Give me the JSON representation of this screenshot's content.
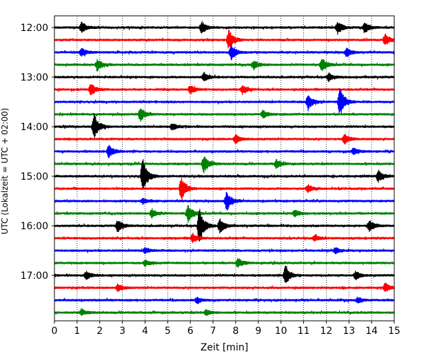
{
  "chart_data": {
    "type": "line",
    "title": "",
    "xlabel": "Zeit  [min]",
    "ylabel": "UTC (Lokalzeit = UTC + 02:00)",
    "xlim": [
      0,
      15
    ],
    "xticks": [
      0,
      1,
      2,
      3,
      4,
      5,
      6,
      7,
      8,
      9,
      10,
      11,
      12,
      13,
      14,
      15
    ],
    "ytick_labels": [
      "12:00",
      "13:00",
      "14:00",
      "15:00",
      "16:00",
      "17:00"
    ],
    "ytick_rows": [
      0,
      4,
      8,
      12,
      16,
      20
    ],
    "grid": "vertical dotted",
    "trace_interval_min": 15,
    "series": [
      {
        "start": "12:00",
        "color": "#000000",
        "events": [
          {
            "t": 1.2,
            "amp": 0.35
          },
          {
            "t": 6.5,
            "amp": 0.4
          },
          {
            "t": 12.5,
            "amp": 0.45
          },
          {
            "t": 13.7,
            "amp": 0.4
          }
        ]
      },
      {
        "start": "12:15",
        "color": "#ff0000",
        "events": [
          {
            "t": 7.7,
            "amp": 0.7
          },
          {
            "t": 14.6,
            "amp": 0.4
          }
        ]
      },
      {
        "start": "12:30",
        "color": "#0000ff",
        "events": [
          {
            "t": 1.2,
            "amp": 0.3
          },
          {
            "t": 7.8,
            "amp": 0.55
          },
          {
            "t": 12.9,
            "amp": 0.3
          }
        ]
      },
      {
        "start": "12:45",
        "color": "#008000",
        "events": [
          {
            "t": 1.9,
            "amp": 0.4
          },
          {
            "t": 8.8,
            "amp": 0.3
          },
          {
            "t": 11.8,
            "amp": 0.45
          }
        ]
      },
      {
        "start": "13:00",
        "color": "#000000",
        "events": [
          {
            "t": 6.6,
            "amp": 0.3
          },
          {
            "t": 12.1,
            "amp": 0.25
          }
        ]
      },
      {
        "start": "13:15",
        "color": "#ff0000",
        "events": [
          {
            "t": 1.6,
            "amp": 0.45
          },
          {
            "t": 6.0,
            "amp": 0.3
          },
          {
            "t": 8.3,
            "amp": 0.3
          }
        ]
      },
      {
        "start": "13:30",
        "color": "#0000ff",
        "events": [
          {
            "t": 11.2,
            "amp": 0.55
          },
          {
            "t": 12.6,
            "amp": 1.0
          }
        ]
      },
      {
        "start": "13:45",
        "color": "#008000",
        "events": [
          {
            "t": 3.8,
            "amp": 0.45
          },
          {
            "t": 9.2,
            "amp": 0.3
          }
        ]
      },
      {
        "start": "14:00",
        "color": "#000000",
        "events": [
          {
            "t": 1.75,
            "amp": 0.85
          },
          {
            "t": 5.2,
            "amp": 0.25
          }
        ]
      },
      {
        "start": "14:15",
        "color": "#ff0000",
        "events": [
          {
            "t": 8.0,
            "amp": 0.3
          },
          {
            "t": 12.8,
            "amp": 0.35
          }
        ]
      },
      {
        "start": "14:30",
        "color": "#0000ff",
        "events": [
          {
            "t": 2.4,
            "amp": 0.5
          },
          {
            "t": 13.2,
            "amp": 0.25
          }
        ]
      },
      {
        "start": "14:45",
        "color": "#008000",
        "events": [
          {
            "t": 6.6,
            "amp": 0.65
          },
          {
            "t": 9.8,
            "amp": 0.3
          }
        ]
      },
      {
        "start": "15:00",
        "color": "#000000",
        "events": [
          {
            "t": 3.9,
            "amp": 1.15
          },
          {
            "t": 14.3,
            "amp": 0.4
          }
        ]
      },
      {
        "start": "15:15",
        "color": "#ff0000",
        "events": [
          {
            "t": 5.6,
            "amp": 0.85
          },
          {
            "t": 11.2,
            "amp": 0.25
          }
        ]
      },
      {
        "start": "15:30",
        "color": "#0000ff",
        "events": [
          {
            "t": 7.6,
            "amp": 0.7
          },
          {
            "t": 3.9,
            "amp": 0.2
          }
        ]
      },
      {
        "start": "15:45",
        "color": "#008000",
        "events": [
          {
            "t": 5.9,
            "amp": 0.6
          },
          {
            "t": 4.3,
            "amp": 0.3
          },
          {
            "t": 10.6,
            "amp": 0.25
          }
        ]
      },
      {
        "start": "16:00",
        "color": "#000000",
        "events": [
          {
            "t": 2.8,
            "amp": 0.45
          },
          {
            "t": 6.4,
            "amp": 1.2
          },
          {
            "t": 7.3,
            "amp": 0.5
          },
          {
            "t": 13.9,
            "amp": 0.35
          }
        ]
      },
      {
        "start": "16:15",
        "color": "#ff0000",
        "events": [
          {
            "t": 6.1,
            "amp": 0.35
          },
          {
            "t": 11.5,
            "amp": 0.2
          }
        ]
      },
      {
        "start": "16:30",
        "color": "#0000ff",
        "events": [
          {
            "t": 4.0,
            "amp": 0.2
          },
          {
            "t": 12.4,
            "amp": 0.2
          }
        ]
      },
      {
        "start": "16:45",
        "color": "#008000",
        "events": [
          {
            "t": 8.1,
            "amp": 0.35
          },
          {
            "t": 4.0,
            "amp": 0.2
          }
        ]
      },
      {
        "start": "17:00",
        "color": "#000000",
        "events": [
          {
            "t": 1.4,
            "amp": 0.3
          },
          {
            "t": 10.2,
            "amp": 0.65
          },
          {
            "t": 13.3,
            "amp": 0.3
          }
        ]
      },
      {
        "start": "17:15",
        "color": "#ff0000",
        "events": [
          {
            "t": 2.8,
            "amp": 0.25
          },
          {
            "t": 14.6,
            "amp": 0.3
          }
        ]
      },
      {
        "start": "17:30",
        "color": "#0000ff",
        "events": [
          {
            "t": 6.3,
            "amp": 0.2
          },
          {
            "t": 13.4,
            "amp": 0.2
          }
        ]
      },
      {
        "start": "17:45",
        "color": "#008000",
        "events": [
          {
            "t": 1.2,
            "amp": 0.2
          },
          {
            "t": 6.7,
            "amp": 0.2
          }
        ]
      }
    ]
  }
}
